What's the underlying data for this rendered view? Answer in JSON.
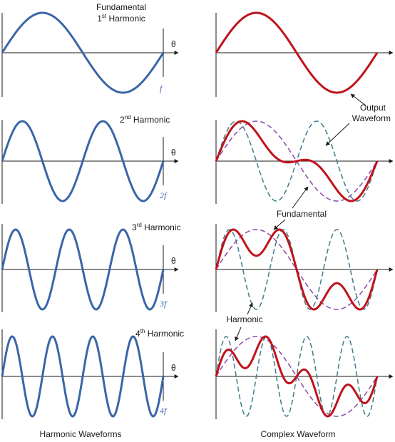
{
  "colors": {
    "harmonic": "#3a66a8",
    "output": "#c0121a",
    "fundamental_dashed": "#8a4aa6",
    "harmonic_dashed": "#3d7c8c",
    "axis": "#1a1a1a"
  },
  "axis_symbol": "θ",
  "left_panels": [
    {
      "title_lines": [
        "Fundamental"
      ],
      "ordinal_number": "1",
      "ordinal_suffix": "st",
      "ordinal_word": " Harmonic",
      "multiplier": "f",
      "cycles": 1
    },
    {
      "ordinal_number": "2",
      "ordinal_suffix": "nd",
      "ordinal_word": " Harmonic",
      "multiplier": "2f",
      "cycles": 2
    },
    {
      "ordinal_number": "3",
      "ordinal_suffix": "rd",
      "ordinal_word": " Harmonic",
      "multiplier": "3f",
      "cycles": 3
    },
    {
      "ordinal_number": "4",
      "ordinal_suffix": "th",
      "ordinal_word": " Harmonic",
      "multiplier": "4f",
      "cycles": 4
    }
  ],
  "right_panels": [
    {
      "harmonic_order": 1,
      "mix_ratio": 0
    },
    {
      "harmonic_order": 2,
      "mix_ratio": 0.6
    },
    {
      "harmonic_order": 3,
      "mix_ratio": 0.6
    },
    {
      "harmonic_order": 4,
      "mix_ratio": 0.6
    }
  ],
  "annotations": {
    "output_waveform_line1": "Output",
    "output_waveform_line2": "Waveform",
    "fundamental": "Fundamental",
    "harmonic": "Harmonic"
  },
  "captions": {
    "left": "Harmonic Waveforms",
    "right": "Complex Waveform"
  }
}
